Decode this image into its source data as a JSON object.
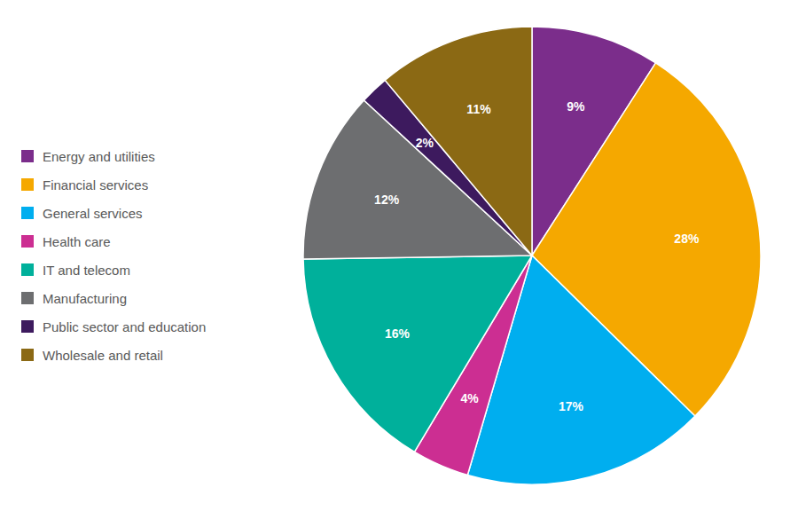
{
  "chart_data": {
    "type": "pie",
    "categories": [
      "Energy and utilities",
      "Financial services",
      "General services",
      "Health care",
      "IT and telecom",
      "Manufacturing",
      "Public sector and education",
      "Wholesale and retail"
    ],
    "values": [
      9,
      28,
      17,
      4,
      16,
      12,
      2,
      11
    ],
    "value_labels": [
      "9%",
      "28%",
      "17%",
      "4%",
      "16%",
      "12%",
      "2%",
      "11%"
    ],
    "colors": [
      "#7b2d8b",
      "#f5a800",
      "#00aeef",
      "#cc2e92",
      "#00b09b",
      "#6d6e70",
      "#3d1a5e",
      "#8b6914"
    ],
    "data_labels": true,
    "legend": "left"
  }
}
